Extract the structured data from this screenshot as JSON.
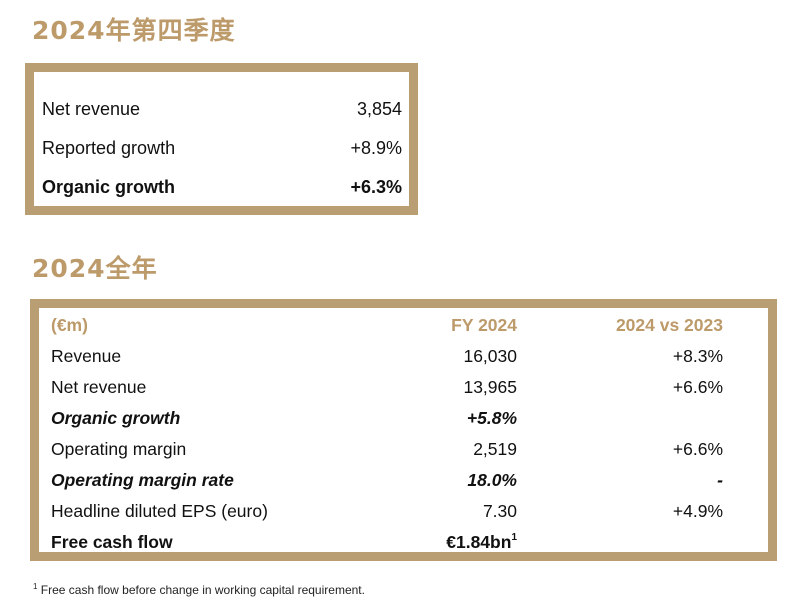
{
  "q4": {
    "title": "2024年第四季度",
    "rows": [
      {
        "label": "Net revenue",
        "value": "3,854"
      },
      {
        "label": "Reported growth",
        "value": "+8.9%"
      },
      {
        "label": "Organic growth",
        "value": "+6.3%"
      }
    ]
  },
  "fy": {
    "title": "2024全年",
    "headers": {
      "unit": "(€m)",
      "col1": "FY 2024",
      "col2": "2024 vs 2023"
    },
    "rows": [
      {
        "label": "Revenue",
        "value": "16,030",
        "change": "+8.3%"
      },
      {
        "label": "Net revenue",
        "value": "13,965",
        "change": "+6.6%"
      },
      {
        "label": "Organic growth",
        "value": "+5.8%",
        "change": ""
      },
      {
        "label": "Operating margin",
        "value": "2,519",
        "change": "+6.6%"
      },
      {
        "label": "Operating margin rate",
        "value": "18.0%",
        "change": "-"
      },
      {
        "label": "Headline diluted EPS (euro)",
        "value": "7.30",
        "change": "+4.9%"
      },
      {
        "label": "Free cash flow",
        "value": "€1.84bn",
        "value_sup": "1",
        "change": ""
      }
    ]
  },
  "footnote": {
    "marker": "1",
    "text": " Free cash flow before change in working capital requirement."
  },
  "colors": {
    "accent": "#b89e72",
    "title": "#bc9a6a"
  }
}
